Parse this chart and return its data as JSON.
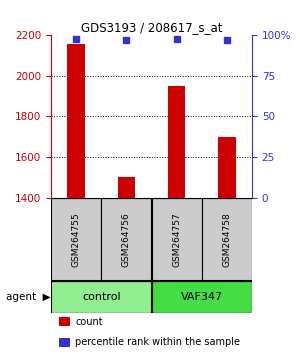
{
  "title": "GDS3193 / 208617_s_at",
  "samples": [
    "GSM264755",
    "GSM264756",
    "GSM264757",
    "GSM264758"
  ],
  "counts": [
    2160,
    1500,
    1950,
    1700
  ],
  "percentiles": [
    98,
    97,
    98,
    97
  ],
  "ylim_left": [
    1400,
    2200
  ],
  "yticks_left": [
    1400,
    1600,
    1800,
    2000,
    2200
  ],
  "ylim_right": [
    0,
    100
  ],
  "yticks_right": [
    0,
    25,
    50,
    75,
    100
  ],
  "yticklabels_right": [
    "0",
    "25",
    "50",
    "75",
    "100%"
  ],
  "bar_color": "#cc0000",
  "dot_color": "#3333cc",
  "groups": [
    {
      "label": "control",
      "samples": [
        0,
        1
      ],
      "color": "#90ee90"
    },
    {
      "label": "VAF347",
      "samples": [
        2,
        3
      ],
      "color": "#44dd44"
    }
  ],
  "legend_items": [
    {
      "color": "#cc0000",
      "label": "count"
    },
    {
      "color": "#3333cc",
      "label": "percentile rank within the sample"
    }
  ],
  "background_color": "#ffffff",
  "left_axis_color": "#cc0000",
  "right_axis_color": "#3333cc",
  "sample_box_color": "#cccccc",
  "dotted_grid_yticks": [
    1600,
    1800,
    2000
  ],
  "bar_width": 0.35
}
